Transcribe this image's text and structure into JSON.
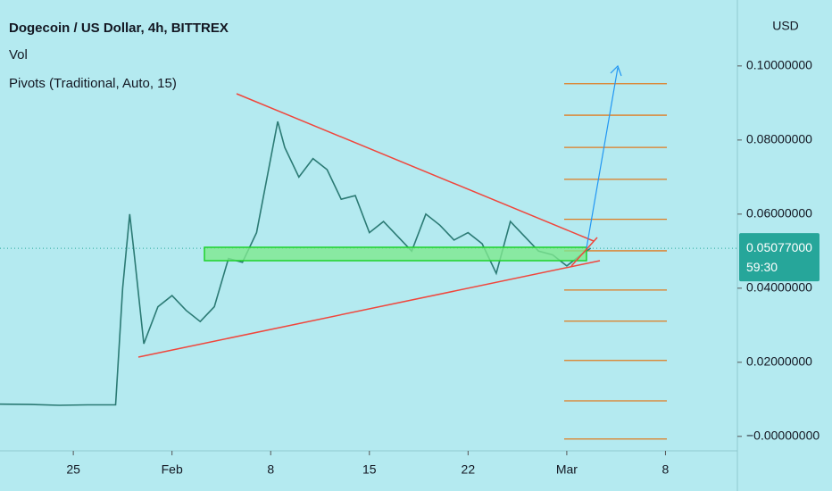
{
  "chart_data": {
    "type": "line",
    "title": "Dogecoin / US Dollar, 4h, BITTREX",
    "indicators": [
      "Vol",
      "Pivots (Traditional, Auto, 15)"
    ],
    "currency": "USD",
    "x": [
      19.8,
      22,
      24,
      26,
      28,
      28.5,
      29,
      29.3,
      30,
      31,
      32,
      33,
      34,
      35,
      36,
      37,
      38,
      39,
      39.5,
      40,
      41,
      42,
      43,
      44,
      45,
      46,
      47,
      48,
      49,
      50,
      51,
      52,
      53,
      54,
      55,
      56,
      57,
      58,
      59,
      60,
      61,
      61.7
    ],
    "values": [
      0.0087,
      0.0086,
      0.0084,
      0.0085,
      0.0085,
      0.04,
      0.06,
      0.05,
      0.025,
      0.035,
      0.038,
      0.034,
      0.031,
      0.035,
      0.048,
      0.047,
      0.055,
      0.075,
      0.085,
      0.078,
      0.07,
      0.075,
      0.072,
      0.064,
      0.065,
      0.055,
      0.058,
      0.054,
      0.05,
      0.06,
      0.057,
      0.053,
      0.055,
      0.052,
      0.044,
      0.058,
      0.054,
      0.05,
      0.049,
      0.046,
      0.049,
      0.0508
    ],
    "color": "#2b7a74",
    "xlim": [
      19.8,
      72.1
    ],
    "xticks": [
      {
        "value": 25,
        "label": "25"
      },
      {
        "value": 32,
        "label": "Feb"
      },
      {
        "value": 39,
        "label": "8"
      },
      {
        "value": 46,
        "label": "15"
      },
      {
        "value": 53,
        "label": "22"
      },
      {
        "value": 60,
        "label": "Mar"
      },
      {
        "value": 67,
        "label": "8"
      }
    ],
    "ylim": [
      -0.0039,
      0.1178
    ],
    "yticks": [
      {
        "value": 0.1,
        "label": "0.10000000"
      },
      {
        "value": 0.08,
        "label": "0.08000000"
      },
      {
        "value": 0.06,
        "label": "0.06000000"
      },
      {
        "value": 0.04,
        "label": "0.04000000"
      },
      {
        "value": 0.02,
        "label": "0.02000000"
      },
      {
        "value": 0,
        "label": "−0.00000000"
      }
    ],
    "last_price": {
      "value": 0.05077,
      "label": "0.05077000"
    },
    "countdown": "59:30",
    "pivots": [
      0.0952,
      0.0867,
      0.078,
      0.0694,
      0.0586,
      0.0501,
      0.0395,
      0.0311,
      0.0205,
      0.0096,
      -0.0007
    ],
    "pivot_color": "#e07b1f"
  }
}
